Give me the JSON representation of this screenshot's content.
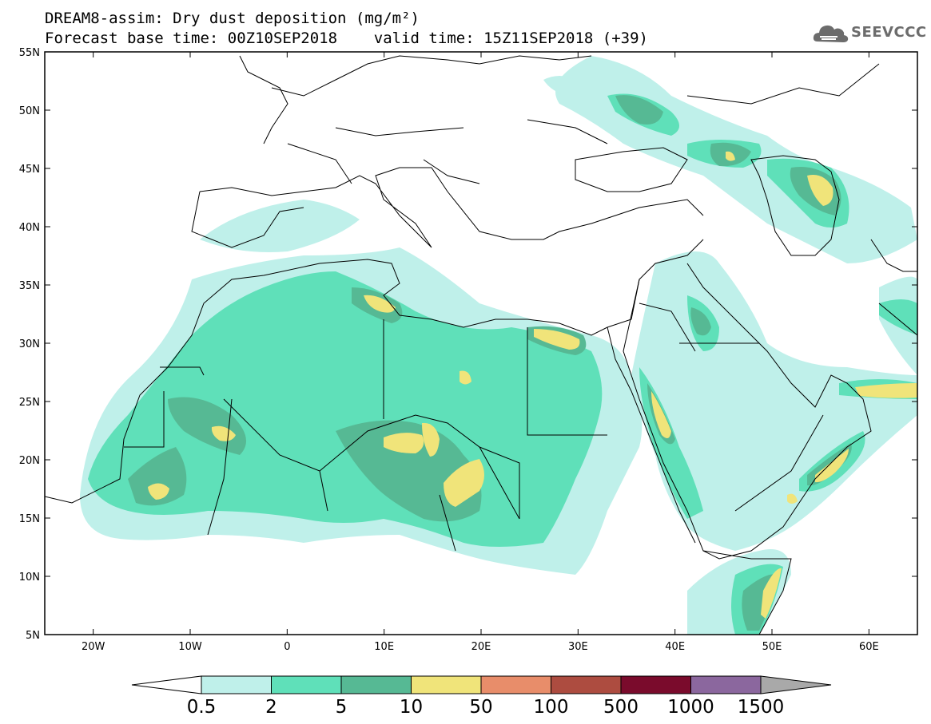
{
  "title": {
    "line1": "DREAM8-assim: Dry dust deposition (mg/m²)",
    "line2": "Forecast base time: 00Z10SEP2018    valid time: 15Z11SEP2018 (+39)"
  },
  "logo": {
    "text": "SEEVCCC",
    "icon": "cloud-icon",
    "color": "#6c6c6c"
  },
  "axes": {
    "lat_labels": [
      "55N",
      "50N",
      "45N",
      "40N",
      "35N",
      "30N",
      "25N",
      "20N",
      "15N",
      "10N",
      "5N"
    ],
    "lon_labels": [
      "20W",
      "10W",
      "0",
      "10E",
      "20E",
      "30E",
      "40E",
      "50E",
      "60E"
    ],
    "lat_range": [
      5,
      55
    ],
    "lon_range": [
      -25,
      65
    ]
  },
  "colorbar": {
    "labels": [
      "0.5",
      "2",
      "5",
      "10",
      "50",
      "100",
      "500",
      "1000",
      "1500"
    ],
    "colors": [
      "#bff0ea",
      "#5fe0b9",
      "#56b994",
      "#f0e47a",
      "#e88d6a",
      "#ad4c40",
      "#7a0b2c",
      "#8b679e"
    ],
    "under_color": "#ffffff",
    "over_color": "#a9a9a9"
  },
  "palette": {
    "land_outline": "#000000",
    "ocean": "#ffffff"
  }
}
